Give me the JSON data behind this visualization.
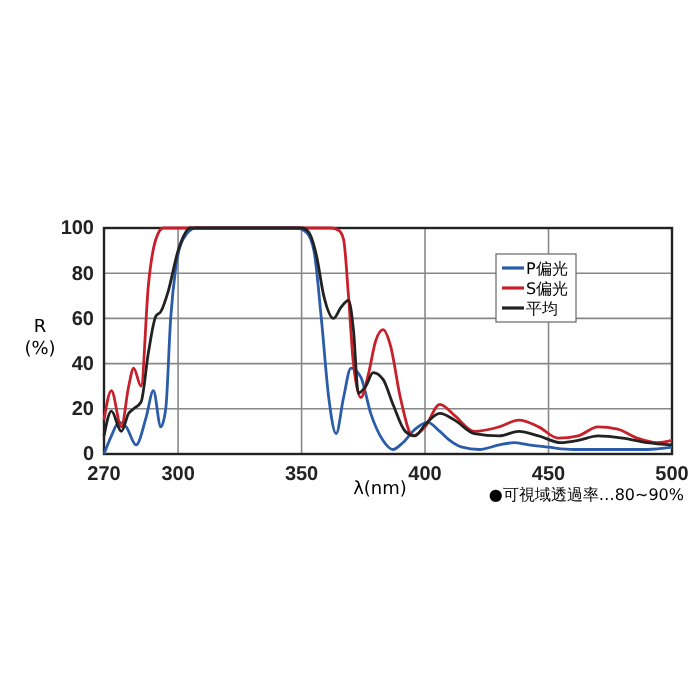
{
  "chart_data": {
    "type": "line",
    "xlabel": "λ(nm)",
    "ylabel": "R (%)",
    "xlim": [
      270,
      500
    ],
    "xticks": [
      270,
      300,
      350,
      400,
      450,
      500
    ],
    "ylim": [
      0,
      100
    ],
    "yticks": [
      0,
      20,
      40,
      60,
      80,
      100
    ],
    "grid": true,
    "legend": "top right",
    "annotations": [
      "●可視域透過率…80~90%"
    ],
    "series": [
      {
        "name": "P偏光",
        "color": "#2a5caa",
        "x": [
          270,
          273,
          276,
          279,
          283,
          287,
          290,
          293,
          295,
          297,
          299,
          302,
          307,
          340,
          348,
          352,
          355,
          358,
          361,
          364,
          367,
          370,
          374,
          378,
          383,
          387,
          391,
          396,
          401,
          406,
          410,
          415,
          422,
          430,
          436,
          442,
          450,
          460,
          475,
          490,
          500
        ],
        "values": [
          0,
          8,
          14,
          12,
          4,
          16,
          28,
          12,
          20,
          60,
          82,
          95,
          100,
          100,
          100,
          98,
          90,
          60,
          25,
          9,
          25,
          38,
          34,
          18,
          6,
          2,
          5,
          11,
          14,
          10,
          6,
          3,
          2,
          4,
          5,
          4,
          3,
          2,
          2,
          2,
          3
        ]
      },
      {
        "name": "S偏光",
        "color": "#c8202a",
        "x": [
          270,
          273,
          277,
          280,
          282,
          285,
          288,
          291,
          294,
          362,
          365,
          367,
          369,
          371,
          374,
          377,
          380,
          383,
          386,
          390,
          395,
          400,
          406,
          412,
          420,
          430,
          438,
          446,
          454,
          462,
          470,
          478,
          486,
          494,
          500
        ],
        "values": [
          15,
          28,
          12,
          30,
          38,
          30,
          75,
          95,
          100,
          100,
          99,
          95,
          70,
          40,
          25,
          35,
          50,
          55,
          48,
          25,
          8,
          12,
          22,
          17,
          10,
          12,
          15,
          12,
          7,
          8,
          12,
          11,
          7,
          5,
          6
        ]
      },
      {
        "name": "平均",
        "color": "#222222",
        "x": [
          270,
          273,
          277,
          280,
          282,
          285,
          288,
          291,
          293,
          296,
          300,
          305,
          350,
          353,
          356,
          359,
          363,
          366,
          369,
          371,
          373,
          376,
          379,
          383,
          387,
          392,
          396,
          400,
          406,
          412,
          420,
          430,
          438,
          446,
          455,
          462,
          470,
          480,
          490,
          500
        ],
        "values": [
          8,
          19,
          10,
          18,
          20,
          23,
          45,
          61,
          63,
          72,
          90,
          100,
          100,
          98,
          88,
          70,
          60,
          65,
          68,
          55,
          27,
          30,
          36,
          33,
          22,
          10,
          8,
          13,
          18,
          15,
          9,
          8,
          10,
          8,
          5,
          6,
          8,
          7,
          5,
          4
        ]
      }
    ]
  }
}
